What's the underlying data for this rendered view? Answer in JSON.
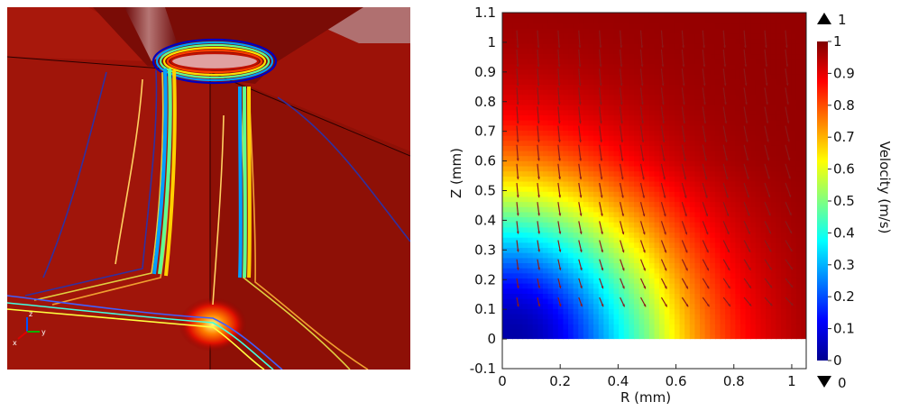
{
  "render_3d": {
    "description_icon": "axis-triad-icon",
    "triad_labels": [
      "z",
      "y",
      "x"
    ]
  },
  "chart_data": {
    "type": "heatmap",
    "xlabel": "R (mm)",
    "ylabel": "Z (mm)",
    "xlim": [
      0,
      1.05
    ],
    "ylim": [
      -0.1,
      1.1
    ],
    "x_ticks": [
      "0",
      "0.2",
      "0.4",
      "0.6",
      "0.8",
      "1"
    ],
    "y_ticks": [
      "-0.1",
      "0",
      "0.1",
      "0.2",
      "0.3",
      "0.4",
      "0.5",
      "0.6",
      "0.7",
      "0.8",
      "0.9",
      "1",
      "1.1"
    ],
    "field": "velocity magnitude",
    "field_domain": {
      "r": [
        0,
        1.05
      ],
      "z": [
        0,
        1.1
      ]
    },
    "colorbar": {
      "label": "Velocity (m/s)",
      "range": [
        0,
        1
      ],
      "ticks": [
        "0",
        "0.1",
        "0.2",
        "0.3",
        "0.4",
        "0.5",
        "0.6",
        "0.7",
        "0.8",
        "0.9",
        "1"
      ],
      "max_marker": "1",
      "min_marker": "0",
      "colormap": [
        "#00008f",
        "#0000ff",
        "#0080ff",
        "#00ffff",
        "#80ff80",
        "#ffff00",
        "#ff8000",
        "#ff0000",
        "#800000"
      ]
    },
    "arrow_color": "#8b1a1a",
    "grid": false
  }
}
